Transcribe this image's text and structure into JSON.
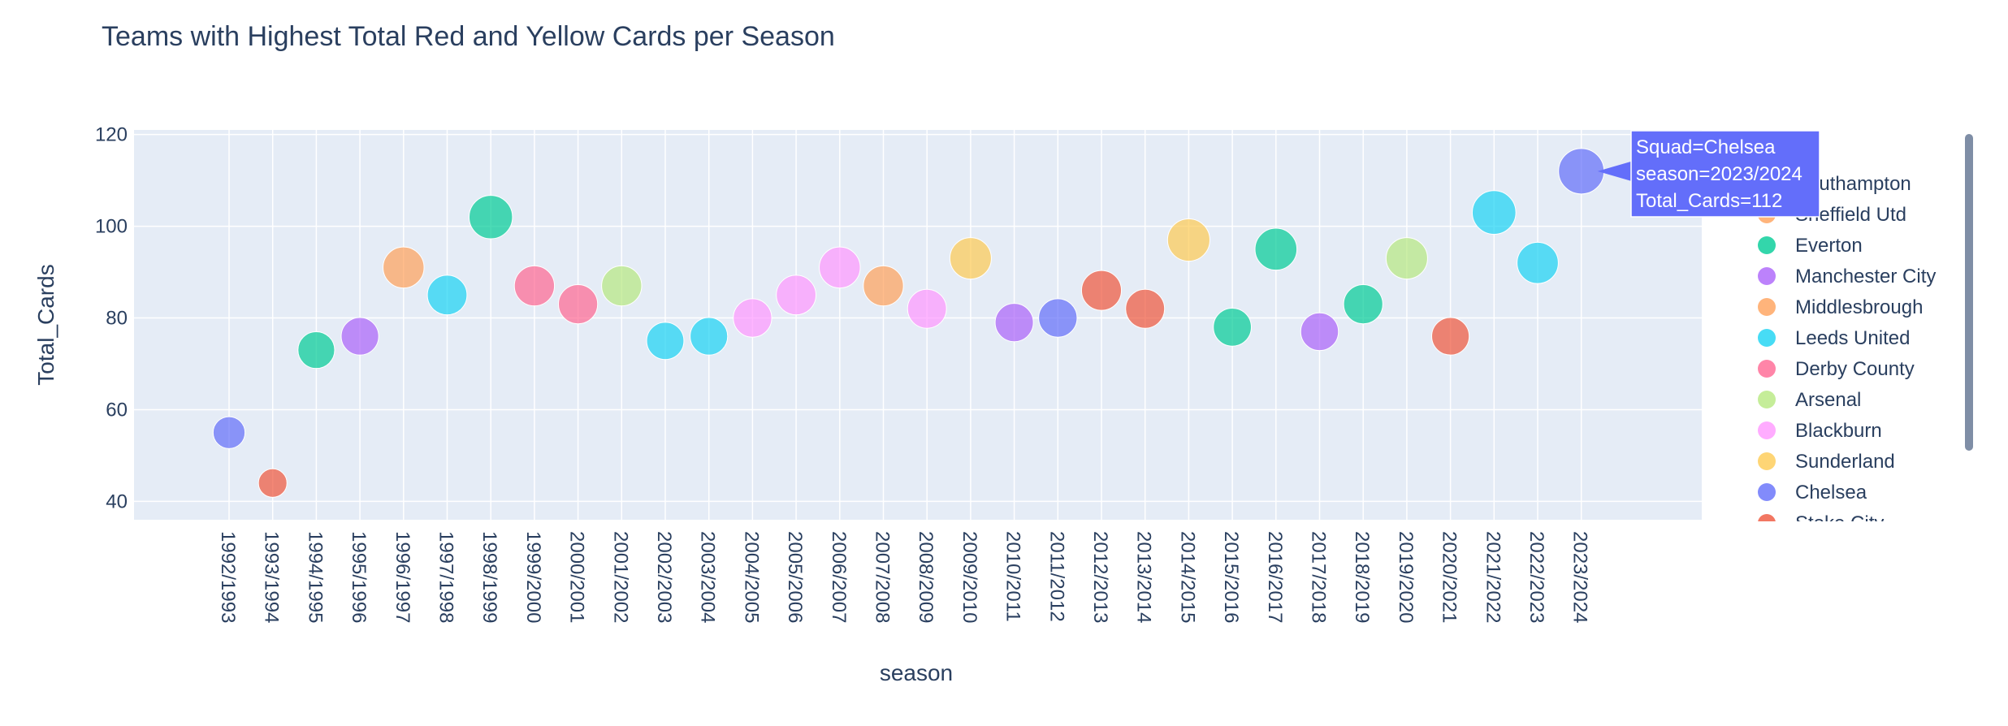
{
  "chart_data": {
    "type": "scatter",
    "title": "Teams with Highest Total Red and Yellow Cards per Season",
    "xlabel": "season",
    "ylabel": "Total_Cards",
    "ylim": [
      36,
      121
    ],
    "y_ticks": [
      40,
      60,
      80,
      100,
      120
    ],
    "grid": true,
    "legend_placement": "right",
    "categories": [
      "1992/1993",
      "1993/1994",
      "1994/1995",
      "1995/1996",
      "1996/1997",
      "1997/1998",
      "1998/1999",
      "1999/2000",
      "2000/2001",
      "2001/2002",
      "2002/2003",
      "2003/2004",
      "2004/2005",
      "2005/2006",
      "2006/2007",
      "2007/2008",
      "2008/2009",
      "2009/2010",
      "2010/2011",
      "2011/2012",
      "2012/2013",
      "2013/2014",
      "2014/2015",
      "2015/2016",
      "2016/2017",
      "2017/2018",
      "2018/2019",
      "2019/2020",
      "2020/2021",
      "2021/2022",
      "2022/2023",
      "2023/2024"
    ],
    "points": [
      {
        "season": "1992/1993",
        "value": 55
      },
      {
        "season": "1993/1994",
        "value": 44
      },
      {
        "season": "1994/1995",
        "value": 73
      },
      {
        "season": "1995/1996",
        "value": 76
      },
      {
        "season": "1996/1997",
        "value": 91
      },
      {
        "season": "1997/1998",
        "value": 85
      },
      {
        "season": "1998/1999",
        "value": 102
      },
      {
        "season": "1999/2000",
        "value": 87
      },
      {
        "season": "2000/2001",
        "value": 83
      },
      {
        "season": "2001/2002",
        "value": 87
      },
      {
        "season": "2002/2003",
        "value": 75
      },
      {
        "season": "2003/2004",
        "value": 76
      },
      {
        "season": "2004/2005",
        "value": 80
      },
      {
        "season": "2005/2006",
        "value": 85
      },
      {
        "season": "2006/2007",
        "value": 91
      },
      {
        "season": "2007/2008",
        "value": 87
      },
      {
        "season": "2008/2009",
        "value": 82
      },
      {
        "season": "2009/2010",
        "value": 93
      },
      {
        "season": "2010/2011",
        "value": 79
      },
      {
        "season": "2011/2012",
        "value": 80
      },
      {
        "season": "2012/2013",
        "value": 86
      },
      {
        "season": "2013/2014",
        "value": 82
      },
      {
        "season": "2014/2015",
        "value": 97
      },
      {
        "season": "2015/2016",
        "value": 78
      },
      {
        "season": "2016/2017",
        "value": 95
      },
      {
        "season": "2017/2018",
        "value": 77
      },
      {
        "season": "2018/2019",
        "value": 83
      },
      {
        "season": "2019/2020",
        "value": 93
      },
      {
        "season": "2020/2021",
        "value": 76
      },
      {
        "season": "2021/2022",
        "value": 103
      },
      {
        "season": "2022/2023",
        "value": 92
      },
      {
        "season": "2023/2024",
        "value": 112
      }
    ],
    "point_colors": [
      "#636efa",
      "#ef553b",
      "#00cc96",
      "#ab63fa",
      "#ffa15a",
      "#19d3f3",
      "#00cc96",
      "#ff6692",
      "#ff6692",
      "#b6e880",
      "#19d3f3",
      "#19d3f3",
      "#ff97ff",
      "#ff97ff",
      "#ff97ff",
      "#ffa15a",
      "#ff97ff",
      "#fecb52",
      "#ab63fa",
      "#636efa",
      "#ef553b",
      "#ef553b",
      "#fecb52",
      "#00cc96",
      "#00cc96",
      "#ab63fa",
      "#00cc96",
      "#b6e880",
      "#ef553b",
      "#19d3f3",
      "#19d3f3",
      "#636efa"
    ],
    "legend": [
      {
        "name": "Southampton",
        "color": "#00cc96"
      },
      {
        "name": "Sheffield Utd",
        "color": "#ffa15a"
      },
      {
        "name": "Everton",
        "color": "#00cc96"
      },
      {
        "name": "Manchester City",
        "color": "#ab63fa"
      },
      {
        "name": "Middlesbrough",
        "color": "#ffa15a"
      },
      {
        "name": "Leeds United",
        "color": "#19d3f3"
      },
      {
        "name": "Derby County",
        "color": "#ff6692"
      },
      {
        "name": "Arsenal",
        "color": "#b6e880"
      },
      {
        "name": "Blackburn",
        "color": "#ff97ff"
      },
      {
        "name": "Sunderland",
        "color": "#fecb52"
      },
      {
        "name": "Chelsea",
        "color": "#636efa"
      },
      {
        "name": "Stoke City",
        "color": "#ef553b"
      }
    ],
    "tooltip": {
      "lines": [
        "Squad=Chelsea",
        "season=2023/2024",
        "Total_Cards=112"
      ],
      "point_index": 31,
      "color": "#636efa"
    }
  }
}
